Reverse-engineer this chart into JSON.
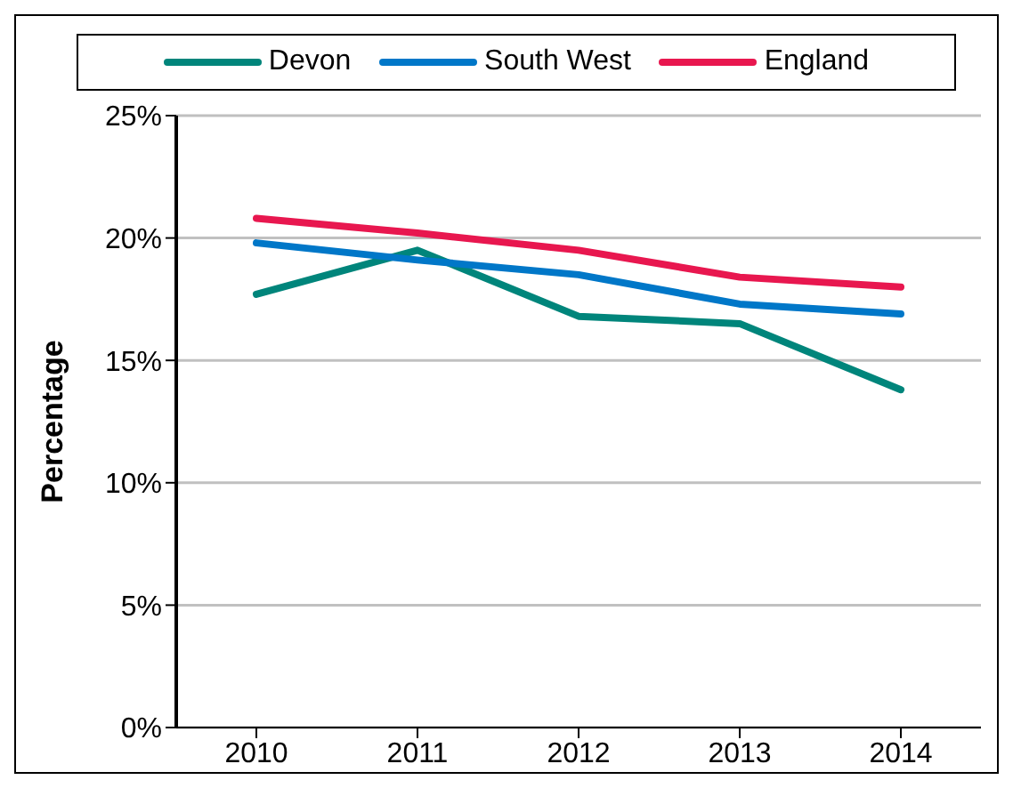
{
  "chart_data": {
    "type": "line",
    "ylabel": "Percentage",
    "categories": [
      "2010",
      "2011",
      "2012",
      "2013",
      "2014"
    ],
    "series": [
      {
        "name": "Devon",
        "color": "#00857b",
        "values": [
          17.7,
          19.5,
          16.8,
          16.5,
          13.8
        ]
      },
      {
        "name": "South West",
        "color": "#0077c8",
        "values": [
          19.8,
          19.1,
          18.5,
          17.3,
          16.9
        ]
      },
      {
        "name": "England",
        "color": "#e8174f",
        "values": [
          20.8,
          20.2,
          19.5,
          18.4,
          18.0
        ]
      }
    ],
    "ylim": [
      0,
      25
    ],
    "yticks": [
      {
        "value": 0,
        "label": "0%"
      },
      {
        "value": 5,
        "label": "5%"
      },
      {
        "value": 10,
        "label": "10%"
      },
      {
        "value": 15,
        "label": "15%"
      },
      {
        "value": 20,
        "label": "20%"
      },
      {
        "value": 25,
        "label": "25%"
      }
    ],
    "grid": "y",
    "legend": "top",
    "marker": "none",
    "line_style": "solid"
  }
}
